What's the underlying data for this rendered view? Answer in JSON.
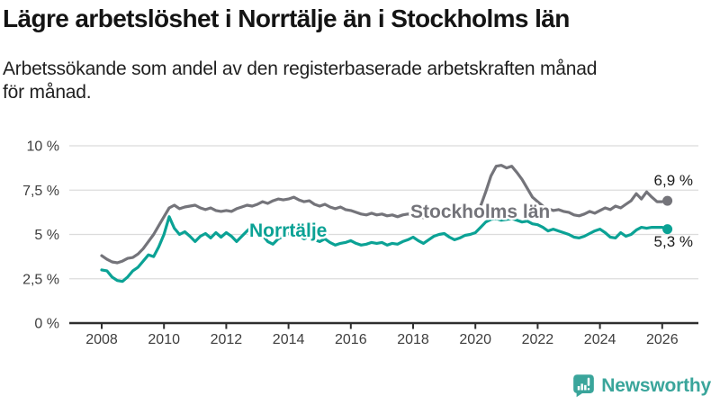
{
  "title": "Lägre arbetslöshet i Norrtälje än i Stockholms län",
  "subtitle": {
    "line1": "Arbetssökande som andel av den registerbaserade arbetskraften månad",
    "line2": "för månad."
  },
  "chart_data": {
    "type": "line",
    "x_unit": "monthly observations by year",
    "x_start": 2008,
    "x_step_years": 0.1667,
    "x_tick_labels": [
      "2008",
      "2010",
      "2012",
      "2014",
      "2016",
      "2018",
      "2020",
      "2022",
      "2024",
      "2026"
    ],
    "y_ticks": [
      {
        "value": 0,
        "label": "0 %"
      },
      {
        "value": 2.5,
        "label": "2,5 %"
      },
      {
        "value": 5,
        "label": "5 %"
      },
      {
        "value": 7.5,
        "label": "7,5 %"
      },
      {
        "value": 10,
        "label": "10 %"
      }
    ],
    "ylim": [
      0,
      10
    ],
    "grid": true,
    "legend_position": "inline-labels",
    "series": [
      {
        "name": "Stockholms län",
        "color": "#74747a",
        "end_label": "6,9 %",
        "end_value": 6.9,
        "values": [
          3.8,
          3.6,
          3.45,
          3.4,
          3.5,
          3.65,
          3.7,
          3.9,
          4.2,
          4.6,
          5.0,
          5.5,
          6.0,
          6.5,
          6.65,
          6.45,
          6.55,
          6.6,
          6.65,
          6.5,
          6.4,
          6.5,
          6.35,
          6.3,
          6.35,
          6.3,
          6.45,
          6.55,
          6.65,
          6.6,
          6.7,
          6.85,
          6.75,
          6.9,
          7.0,
          6.95,
          7.0,
          7.1,
          6.95,
          6.85,
          6.9,
          6.7,
          6.6,
          6.7,
          6.55,
          6.45,
          6.55,
          6.4,
          6.35,
          6.25,
          6.15,
          6.1,
          6.2,
          6.1,
          6.15,
          6.05,
          6.1,
          6.0,
          6.1,
          6.15,
          6.1,
          6.0,
          5.95,
          6.05,
          6.1,
          6.05,
          6.15,
          6.05,
          6.0,
          6.1,
          6.05,
          6.15,
          6.2,
          6.6,
          7.4,
          8.3,
          8.85,
          8.9,
          8.75,
          8.85,
          8.5,
          8.1,
          7.6,
          7.1,
          6.85,
          6.6,
          6.45,
          6.35,
          6.4,
          6.3,
          6.25,
          6.1,
          6.05,
          6.15,
          6.3,
          6.2,
          6.35,
          6.5,
          6.4,
          6.6,
          6.5,
          6.7,
          6.9,
          7.3,
          7.0,
          7.4,
          7.1,
          6.85,
          6.85,
          6.9
        ]
      },
      {
        "name": "Norrtälje",
        "color": "#0ba295",
        "end_label": "5,3 %",
        "end_value": 5.3,
        "values": [
          3.0,
          2.95,
          2.6,
          2.4,
          2.35,
          2.6,
          2.95,
          3.15,
          3.5,
          3.85,
          3.75,
          4.3,
          5.0,
          6.0,
          5.35,
          5.0,
          5.15,
          4.9,
          4.6,
          4.9,
          5.05,
          4.8,
          5.1,
          4.85,
          5.1,
          4.9,
          4.6,
          4.9,
          5.2,
          5.45,
          5.2,
          4.95,
          4.6,
          4.45,
          4.75,
          4.9,
          5.05,
          5.2,
          4.95,
          4.75,
          4.9,
          4.7,
          4.6,
          4.75,
          4.55,
          4.4,
          4.5,
          4.55,
          4.65,
          4.5,
          4.4,
          4.45,
          4.55,
          4.5,
          4.55,
          4.4,
          4.5,
          4.45,
          4.6,
          4.7,
          4.85,
          4.65,
          4.5,
          4.7,
          4.9,
          5.0,
          5.05,
          4.85,
          4.7,
          4.8,
          4.95,
          5.0,
          5.1,
          5.4,
          5.7,
          5.85,
          5.9,
          5.8,
          5.85,
          5.9,
          5.8,
          5.7,
          5.75,
          5.6,
          5.55,
          5.4,
          5.2,
          5.3,
          5.2,
          5.1,
          5.0,
          4.85,
          4.8,
          4.9,
          5.05,
          5.2,
          5.3,
          5.1,
          4.85,
          4.8,
          5.1,
          4.9,
          5.0,
          5.25,
          5.4,
          5.35,
          5.4,
          5.4,
          5.4,
          5.3
        ]
      }
    ]
  },
  "branding": {
    "logo_text": "Newsworthy",
    "logo_color": "#3aa59b",
    "logo_icon": "newsworthy-speech-bubble-bar-chart-icon"
  },
  "colors": {
    "background": "#ffffff",
    "gridline": "#dcdcdc",
    "axis": "#2e2e2e",
    "tick_text": "#3e3e3e",
    "end_label_text": "#1a1a1a",
    "stockholm_line": "#74747a",
    "norrtalje_line": "#0ba295"
  }
}
